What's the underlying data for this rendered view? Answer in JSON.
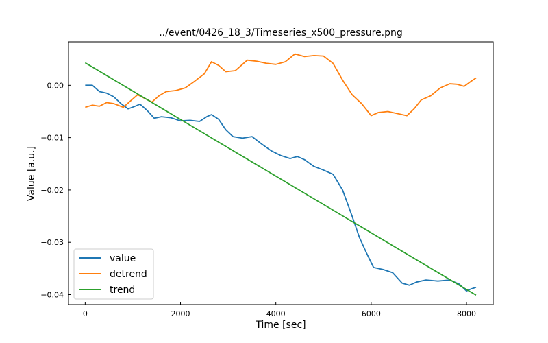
{
  "chart_data": {
    "type": "line",
    "title": "../event/0426_18_3/Timeseries_x500_pressure.png",
    "xlabel": "Time [sec]",
    "ylabel": "Value [a.u.]",
    "xlim": [
      -350,
      8560
    ],
    "ylim": [
      -0.0419,
      0.0083
    ],
    "xticks": [
      0,
      2000,
      4000,
      6000,
      8000
    ],
    "xtick_labels": [
      "0",
      "2000",
      "4000",
      "6000",
      "8000"
    ],
    "yticks": [
      0.0,
      -0.01,
      -0.02,
      -0.03,
      -0.04
    ],
    "ytick_labels": [
      "0.00",
      "−0.01",
      "−0.02",
      "−0.03",
      "−0.04"
    ],
    "grid": false,
    "legend_position": "lower-left",
    "series": [
      {
        "name": "value",
        "color": "#1f77b4",
        "points": [
          [
            0,
            0.0
          ],
          [
            150,
            0.0
          ],
          [
            300,
            -0.0012
          ],
          [
            450,
            -0.0015
          ],
          [
            600,
            -0.0022
          ],
          [
            750,
            -0.0035
          ],
          [
            900,
            -0.0045
          ],
          [
            1050,
            -0.004
          ],
          [
            1150,
            -0.0036
          ],
          [
            1300,
            -0.0048
          ],
          [
            1450,
            -0.0063
          ],
          [
            1600,
            -0.006
          ],
          [
            1800,
            -0.0062
          ],
          [
            2000,
            -0.0068
          ],
          [
            2200,
            -0.0067
          ],
          [
            2400,
            -0.0069
          ],
          [
            2550,
            -0.006
          ],
          [
            2650,
            -0.0056
          ],
          [
            2800,
            -0.0065
          ],
          [
            2950,
            -0.0085
          ],
          [
            3100,
            -0.0098
          ],
          [
            3300,
            -0.0101
          ],
          [
            3500,
            -0.0098
          ],
          [
            3700,
            -0.0112
          ],
          [
            3900,
            -0.0125
          ],
          [
            4100,
            -0.0134
          ],
          [
            4300,
            -0.014
          ],
          [
            4450,
            -0.0136
          ],
          [
            4600,
            -0.0142
          ],
          [
            4800,
            -0.0155
          ],
          [
            5000,
            -0.0162
          ],
          [
            5200,
            -0.017
          ],
          [
            5400,
            -0.02
          ],
          [
            5600,
            -0.025
          ],
          [
            5750,
            -0.029
          ],
          [
            5900,
            -0.032
          ],
          [
            6050,
            -0.0348
          ],
          [
            6250,
            -0.0352
          ],
          [
            6450,
            -0.0358
          ],
          [
            6650,
            -0.0378
          ],
          [
            6800,
            -0.0382
          ],
          [
            6950,
            -0.0376
          ],
          [
            7150,
            -0.0372
          ],
          [
            7400,
            -0.0374
          ],
          [
            7650,
            -0.0372
          ],
          [
            7850,
            -0.038
          ],
          [
            8000,
            -0.0393
          ],
          [
            8100,
            -0.0389
          ],
          [
            8200,
            -0.0386
          ]
        ]
      },
      {
        "name": "detrend",
        "color": "#ff7f0e",
        "points": [
          [
            0,
            -0.0042
          ],
          [
            150,
            -0.0038
          ],
          [
            300,
            -0.004
          ],
          [
            450,
            -0.0033
          ],
          [
            600,
            -0.0035
          ],
          [
            800,
            -0.0042
          ],
          [
            950,
            -0.003
          ],
          [
            1100,
            -0.0018
          ],
          [
            1250,
            -0.0025
          ],
          [
            1400,
            -0.0032
          ],
          [
            1550,
            -0.002
          ],
          [
            1700,
            -0.0012
          ],
          [
            1900,
            -0.001
          ],
          [
            2100,
            -0.0005
          ],
          [
            2300,
            0.0008
          ],
          [
            2500,
            0.0022
          ],
          [
            2650,
            0.0045
          ],
          [
            2800,
            0.0038
          ],
          [
            2950,
            0.0026
          ],
          [
            3150,
            0.0028
          ],
          [
            3400,
            0.0048
          ],
          [
            3600,
            0.0046
          ],
          [
            3800,
            0.0042
          ],
          [
            4000,
            0.004
          ],
          [
            4200,
            0.0045
          ],
          [
            4400,
            0.006
          ],
          [
            4600,
            0.0055
          ],
          [
            4800,
            0.0057
          ],
          [
            5000,
            0.0056
          ],
          [
            5200,
            0.0042
          ],
          [
            5400,
            0.001
          ],
          [
            5600,
            -0.0018
          ],
          [
            5800,
            -0.0035
          ],
          [
            6000,
            -0.0058
          ],
          [
            6150,
            -0.0052
          ],
          [
            6350,
            -0.005
          ],
          [
            6550,
            -0.0054
          ],
          [
            6750,
            -0.0058
          ],
          [
            6900,
            -0.0045
          ],
          [
            7050,
            -0.0028
          ],
          [
            7250,
            -0.002
          ],
          [
            7450,
            -0.0005
          ],
          [
            7650,
            0.0003
          ],
          [
            7800,
            0.0002
          ],
          [
            7950,
            -0.0002
          ],
          [
            8100,
            0.0008
          ],
          [
            8200,
            0.0014
          ]
        ]
      },
      {
        "name": "trend",
        "color": "#2ca02c",
        "points": [
          [
            0,
            0.0043
          ],
          [
            8200,
            -0.0401
          ]
        ]
      }
    ]
  }
}
